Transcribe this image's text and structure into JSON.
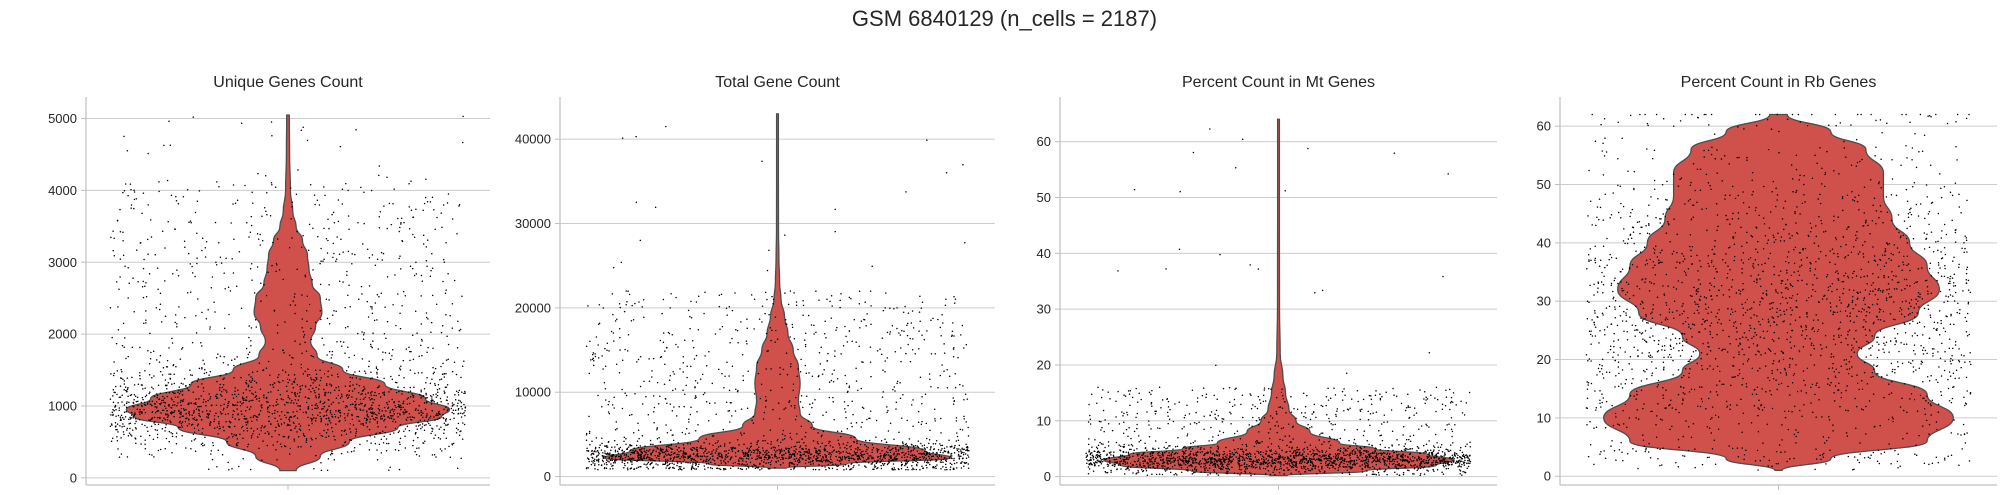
{
  "figure_title": "GSM 6840129 (n_cells = 2187)",
  "colors": {
    "violin_fill": "#d0504c",
    "violin_edge": "#4d4d4d",
    "points": "#000000",
    "grid": "#cccccc"
  },
  "chart_data": [
    {
      "type": "violin",
      "title": "Unique Genes Count",
      "xlabel": "",
      "ylabel": "",
      "ylim": [
        -100,
        5300
      ],
      "yticks": [
        0,
        1000,
        2000,
        3000,
        4000,
        5000
      ],
      "ytick_labels": [
        "0",
        "1000",
        "2000",
        "3000",
        "4000",
        "5000"
      ],
      "grid": true,
      "violin_profile": [
        [
          100,
          0.05
        ],
        [
          300,
          0.2
        ],
        [
          500,
          0.38
        ],
        [
          700,
          0.68
        ],
        [
          850,
          0.95
        ],
        [
          950,
          1.0
        ],
        [
          1100,
          0.85
        ],
        [
          1300,
          0.6
        ],
        [
          1500,
          0.34
        ],
        [
          1700,
          0.18
        ],
        [
          1900,
          0.14
        ],
        [
          2100,
          0.17
        ],
        [
          2300,
          0.21
        ],
        [
          2500,
          0.2
        ],
        [
          2700,
          0.15
        ],
        [
          2900,
          0.13
        ],
        [
          3100,
          0.12
        ],
        [
          3300,
          0.09
        ],
        [
          3500,
          0.05
        ],
        [
          3700,
          0.03
        ],
        [
          4000,
          0.015
        ],
        [
          4500,
          0.01
        ],
        [
          5050,
          0.008
        ]
      ],
      "points": {
        "n": 2187,
        "median": 950,
        "spread": 300,
        "tail_fraction": 0.25,
        "tail_range": [
          1400,
          4200
        ],
        "max": 5050,
        "min": 100
      }
    },
    {
      "type": "violin",
      "title": "Total Gene Count",
      "xlabel": "",
      "ylabel": "",
      "ylim": [
        -1000,
        45000
      ],
      "yticks": [
        0,
        10000,
        20000,
        30000,
        40000
      ],
      "ytick_labels": [
        "0",
        "10000",
        "20000",
        "30000",
        "40000"
      ],
      "grid": true,
      "violin_profile": [
        [
          1000,
          0.05
        ],
        [
          1500,
          0.4
        ],
        [
          2200,
          1.0
        ],
        [
          3000,
          0.85
        ],
        [
          4500,
          0.45
        ],
        [
          6000,
          0.2
        ],
        [
          7500,
          0.13
        ],
        [
          9000,
          0.12
        ],
        [
          11000,
          0.13
        ],
        [
          13000,
          0.12
        ],
        [
          15000,
          0.09
        ],
        [
          17000,
          0.06
        ],
        [
          19000,
          0.04
        ],
        [
          21000,
          0.02
        ],
        [
          23000,
          0.012
        ],
        [
          26000,
          0.008
        ],
        [
          29000,
          0.006
        ],
        [
          35000,
          0.005
        ],
        [
          43000,
          0.005
        ]
      ],
      "points": {
        "n": 2187,
        "median": 2400,
        "spread": 900,
        "tail_fraction": 0.3,
        "tail_range": [
          4000,
          22000
        ],
        "max": 43000,
        "min": 800
      }
    },
    {
      "type": "violin",
      "title": "Percent Count in Mt Genes",
      "xlabel": "",
      "ylabel": "",
      "ylim": [
        -1.5,
        68
      ],
      "yticks": [
        0,
        10,
        20,
        30,
        40,
        50,
        60
      ],
      "ytick_labels": [
        "0",
        "10",
        "20",
        "30",
        "40",
        "50",
        "60"
      ],
      "grid": true,
      "violin_profile": [
        [
          0.2,
          0.05
        ],
        [
          1,
          0.5
        ],
        [
          2,
          0.9
        ],
        [
          3,
          1.0
        ],
        [
          4,
          0.85
        ],
        [
          5,
          0.55
        ],
        [
          6,
          0.35
        ],
        [
          8,
          0.18
        ],
        [
          10,
          0.1
        ],
        [
          12,
          0.06
        ],
        [
          15,
          0.04
        ],
        [
          18,
          0.025
        ],
        [
          22,
          0.01
        ],
        [
          30,
          0.006
        ],
        [
          45,
          0.005
        ],
        [
          64,
          0.005
        ]
      ],
      "points": {
        "n": 2187,
        "median": 3,
        "spread": 1.2,
        "tail_fraction": 0.2,
        "tail_range": [
          5,
          16
        ],
        "max": 64,
        "min": 0.2
      }
    },
    {
      "type": "violin",
      "title": "Percent Count in Rb Genes",
      "xlabel": "",
      "ylabel": "",
      "ylim": [
        -1.5,
        65
      ],
      "yticks": [
        0,
        10,
        20,
        30,
        40,
        50,
        60
      ],
      "ytick_labels": [
        "0",
        "10",
        "20",
        "30",
        "40",
        "50",
        "60"
      ],
      "grid": true,
      "violin_profile": [
        [
          1,
          0.02
        ],
        [
          3,
          0.3
        ],
        [
          6,
          0.85
        ],
        [
          10,
          1.0
        ],
        [
          14,
          0.85
        ],
        [
          18,
          0.55
        ],
        [
          21,
          0.45
        ],
        [
          24,
          0.55
        ],
        [
          28,
          0.8
        ],
        [
          32,
          0.92
        ],
        [
          36,
          0.85
        ],
        [
          40,
          0.75
        ],
        [
          44,
          0.65
        ],
        [
          48,
          0.6
        ],
        [
          52,
          0.6
        ],
        [
          56,
          0.5
        ],
        [
          59,
          0.3
        ],
        [
          62,
          0.05
        ]
      ],
      "points": {
        "n": 2187,
        "median": 28,
        "spread": 14,
        "tail_fraction": 0.0,
        "tail_range": [
          5,
          60
        ],
        "max": 62,
        "min": 1
      }
    }
  ]
}
